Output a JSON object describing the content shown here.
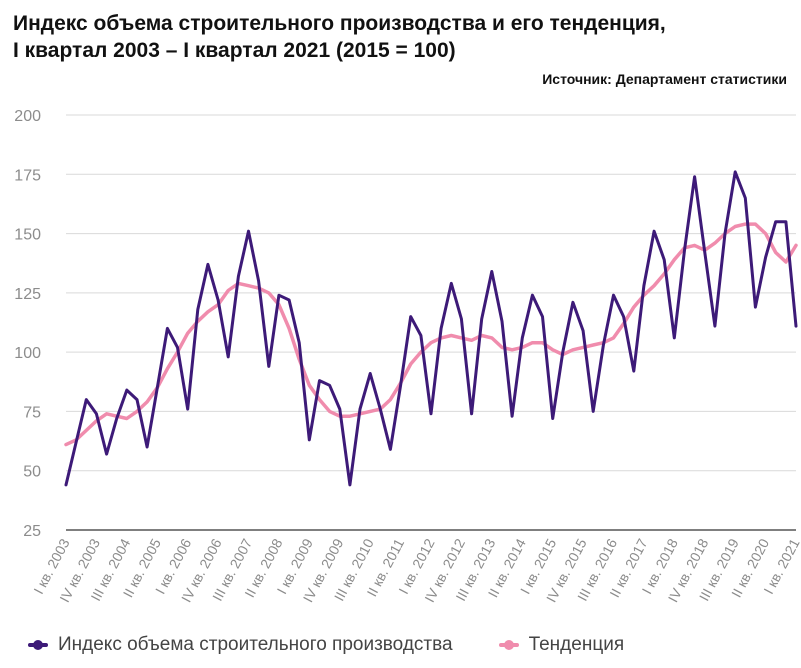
{
  "header": {
    "title_line1": "Индекс объема строительного производства и его тенденция,",
    "title_line2": "I квартал 2003 – I квартал 2021 (2015 = 100)",
    "source": "Источник: Департамент статистики"
  },
  "colors": {
    "series1": "#3d1a78",
    "series2": "#f08cad",
    "grid": "#d9d9d9",
    "axis_text": "#8c8c8c"
  },
  "chart_data": {
    "type": "line",
    "ylim": [
      25,
      200
    ],
    "yticks": [
      25,
      50,
      75,
      100,
      125,
      150,
      175,
      200
    ],
    "grid": true,
    "legend_position": "bottom",
    "x_tick_labels": [
      "I кв. 2003",
      "IV кв. 2003",
      "III кв. 2004",
      "II кв. 2005",
      "I кв. 2006",
      "IV кв. 2006",
      "III кв. 2007",
      "II кв. 2008",
      "I кв. 2009",
      "IV кв. 2009",
      "III кв. 2010",
      "II кв. 2011",
      "I кв. 2012",
      "IV кв. 2012",
      "III кв. 2013",
      "II кв. 2014",
      "I кв. 2015",
      "IV кв. 2015",
      "III кв. 2016",
      "II кв. 2017",
      "I кв. 2018",
      "IV кв. 2018",
      "III кв. 2019",
      "II кв. 2020",
      "I кв. 2021"
    ],
    "series": [
      {
        "name": "Индекс объема строительного производства",
        "values": [
          44,
          62,
          80,
          74,
          57,
          72,
          84,
          80,
          60,
          85,
          110,
          102,
          76,
          118,
          137,
          122,
          98,
          132,
          151,
          130,
          94,
          124,
          122,
          104,
          63,
          88,
          86,
          76,
          44,
          76,
          91,
          76,
          59,
          86,
          115,
          107,
          74,
          110,
          129,
          114,
          74,
          114,
          134,
          113,
          73,
          106,
          124,
          115,
          72,
          100,
          121,
          109,
          75,
          103,
          124,
          115,
          92,
          128,
          151,
          139,
          106,
          143,
          174,
          142,
          111,
          150,
          176,
          165,
          119,
          140,
          155,
          155,
          111
        ]
      },
      {
        "name": "Тенденция",
        "values": [
          61,
          63,
          67,
          71,
          74,
          73,
          72,
          75,
          79,
          85,
          93,
          100,
          108,
          113,
          117,
          120,
          126,
          129,
          128,
          127,
          125,
          120,
          110,
          97,
          86,
          80,
          75,
          73,
          73,
          74,
          75,
          76,
          80,
          87,
          95,
          100,
          104,
          106,
          107,
          106,
          105,
          107,
          106,
          102,
          101,
          102,
          104,
          104,
          101,
          99,
          101,
          102,
          103,
          104,
          106,
          112,
          119,
          124,
          128,
          133,
          139,
          144,
          145,
          143,
          146,
          150,
          153,
          154,
          154,
          150,
          142,
          138,
          145
        ]
      }
    ]
  }
}
